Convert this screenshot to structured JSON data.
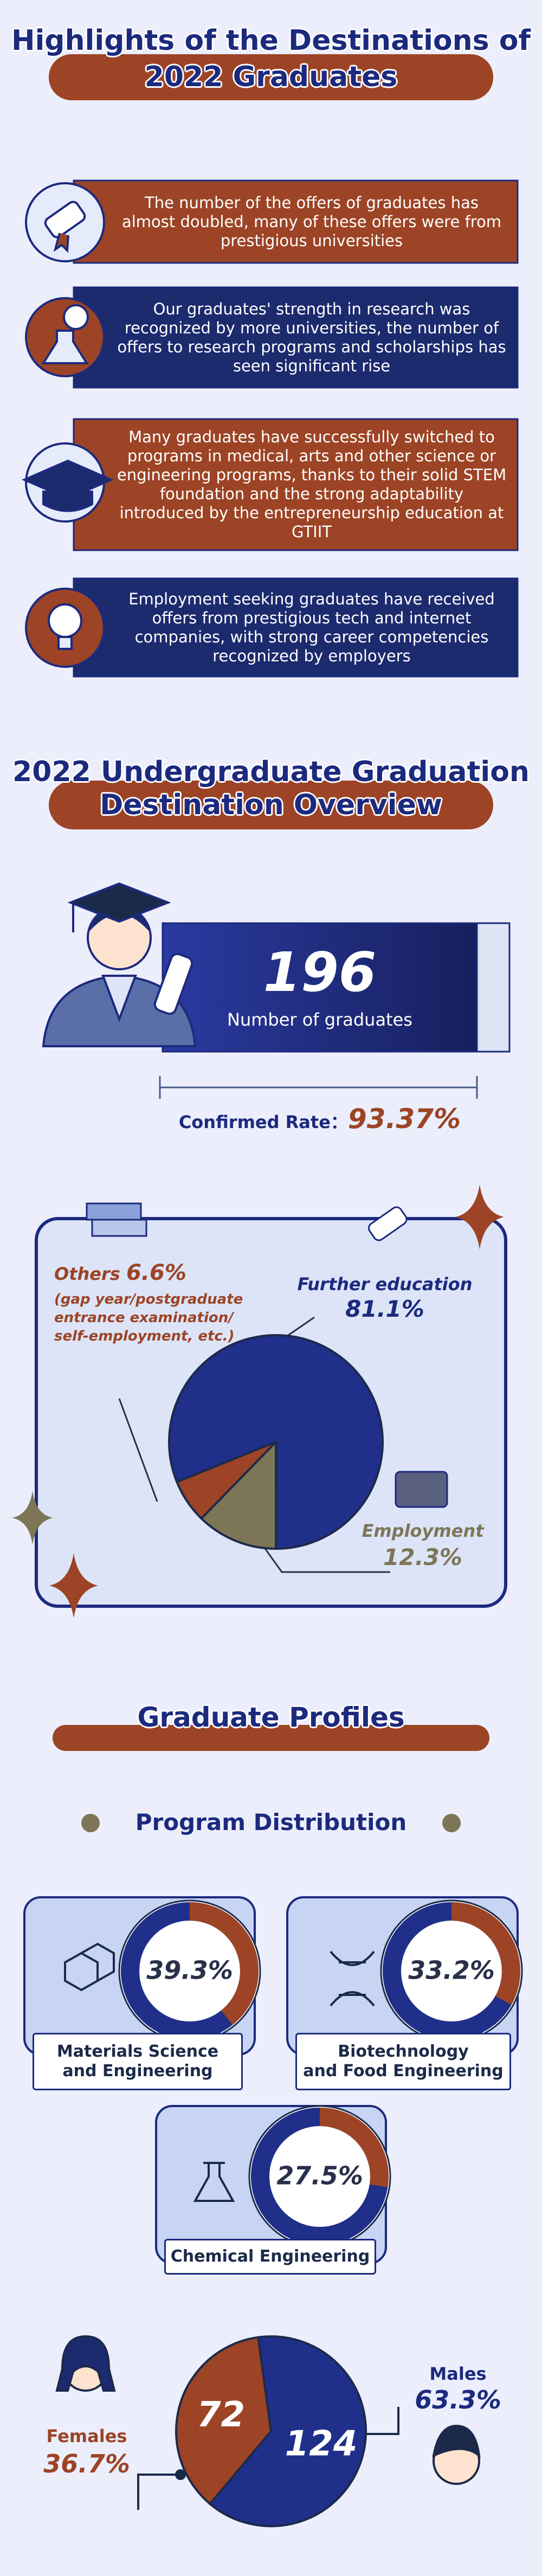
{
  "header": {
    "title_lines": [
      "Highlights of the Destinations of",
      "2022 Graduates"
    ]
  },
  "highlights": [
    "The number of the offers of graduates has almost doubled, many of these offers were from prestigious universities",
    "Our graduates' strength in research was recognized by more universities, the number of offers to research programs and scholarships has seen significant rise",
    "Many graduates have successfully switched to programs in medical, arts and other science or engineering programs, thanks to their solid STEM foundation and the strong adaptability introduced by the entrepreneurship education at GTIIT",
    "Employment seeking graduates have received offers from prestigious tech and internet companies, with strong career competencies recognized by employers"
  ],
  "overview": {
    "title_lines": [
      "2022 Undergraduate Graduation",
      "Destination Overview"
    ],
    "graduates": 196,
    "graduates_label": "Number of graduates",
    "confirmed_rate_label": "Confirmed Rate：",
    "confirmed_rate": {
      "value": 93.37,
      "label": "93.37%"
    }
  },
  "profiles": {
    "title": "Graduate Profiles",
    "subtitle": "Program Distribution"
  },
  "chart_data": [
    {
      "type": "pie",
      "categories": [
        "Further education",
        "Employment",
        "Others"
      ],
      "values": [
        81.1,
        12.3,
        6.6
      ],
      "value_labels": [
        "81.1%",
        "12.3%",
        "6.6%"
      ],
      "colors": [
        "#1f2f8a",
        "#7d7656",
        "#9c4425"
      ],
      "others_detail": "(gap year/postgraduate\nentrance examination/\nself-employment, etc.)"
    },
    {
      "type": "donut",
      "categories": [
        "Materials Science\nand Engineering",
        "Biotechnology\nand Food Engineering",
        "Chemical Engineering"
      ],
      "values": [
        39.3,
        33.2,
        27.5
      ],
      "value_labels": [
        "39.3%",
        "33.2%",
        "27.5%"
      ],
      "color": "#9c4425",
      "track_color": "#1f2f8a"
    },
    {
      "type": "pie",
      "categories": [
        "Females",
        "Males"
      ],
      "values": [
        72,
        124
      ],
      "percent_labels": [
        "36.7%",
        "63.3%"
      ],
      "colors": [
        "#9c4425",
        "#1f2f8a"
      ]
    }
  ]
}
